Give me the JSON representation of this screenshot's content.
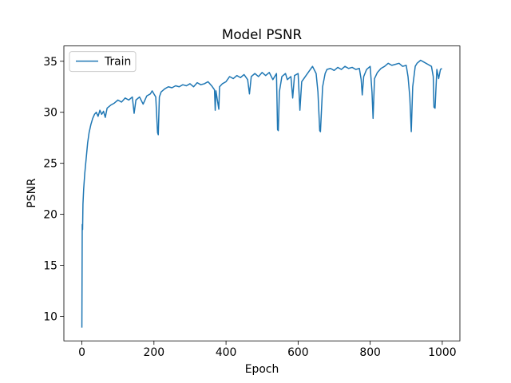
{
  "chart_data": {
    "type": "line",
    "title": "Model PSNR",
    "x_label": "Epoch",
    "y_label": "PSNR",
    "x": [
      0,
      1,
      2,
      3,
      5,
      8,
      12,
      16,
      20,
      25,
      30,
      35,
      40,
      45,
      50,
      55,
      60,
      65,
      70,
      80,
      90,
      100,
      110,
      120,
      130,
      140,
      145,
      150,
      160,
      170,
      180,
      190,
      195,
      200,
      205,
      210,
      212,
      215,
      220,
      230,
      240,
      250,
      260,
      270,
      280,
      290,
      300,
      310,
      320,
      330,
      340,
      350,
      360,
      368,
      370,
      372,
      380,
      382,
      390,
      400,
      410,
      420,
      430,
      440,
      450,
      460,
      465,
      470,
      480,
      490,
      500,
      510,
      520,
      530,
      540,
      543,
      545,
      548,
      555,
      565,
      570,
      580,
      585,
      590,
      600,
      605,
      610,
      620,
      630,
      640,
      650,
      655,
      660,
      662,
      668,
      675,
      680,
      690,
      700,
      710,
      720,
      730,
      740,
      750,
      760,
      770,
      775,
      778,
      782,
      790,
      800,
      805,
      808,
      812,
      820,
      830,
      840,
      850,
      860,
      870,
      880,
      890,
      900,
      905,
      910,
      914,
      918,
      925,
      930,
      940,
      950,
      960,
      970,
      975,
      977,
      980,
      985,
      990,
      995,
      999
    ],
    "series": [
      {
        "name": "Train",
        "color": "#1f77b4",
        "values": [
          8.9,
          19,
          18.5,
          21,
          22.5,
          24,
          25.5,
          27,
          28,
          28.8,
          29.4,
          29.8,
          30,
          29.6,
          30.2,
          29.8,
          30.1,
          29.5,
          30.4,
          30.7,
          30.9,
          31.2,
          31,
          31.4,
          31.2,
          31.5,
          29.9,
          31.2,
          31.5,
          30.8,
          31.6,
          31.8,
          32.1,
          31.8,
          31.5,
          28,
          27.8,
          31.5,
          32,
          32.3,
          32.5,
          32.4,
          32.6,
          32.5,
          32.7,
          32.6,
          32.8,
          32.5,
          32.9,
          32.7,
          32.8,
          33,
          32.6,
          32.2,
          30.2,
          32.1,
          30.3,
          32.5,
          32.8,
          33,
          33.5,
          33.3,
          33.6,
          33.4,
          33.7,
          33.2,
          31.8,
          33.5,
          33.8,
          33.5,
          33.9,
          33.6,
          33.9,
          33.2,
          33.8,
          28.3,
          28.2,
          32,
          33.5,
          33.8,
          33.2,
          33.5,
          31.4,
          33.6,
          33.8,
          30.2,
          33,
          33.5,
          34,
          34.5,
          33.8,
          32,
          28.2,
          28.1,
          32.5,
          33.8,
          34.2,
          34.3,
          34.1,
          34.4,
          34.2,
          34.5,
          34.3,
          34.4,
          34.2,
          34.3,
          33.2,
          31.7,
          33.5,
          34.2,
          34.5,
          32,
          29.4,
          33.3,
          33.9,
          34.3,
          34.5,
          34.8,
          34.6,
          34.7,
          34.8,
          34.5,
          34.6,
          33.5,
          31.5,
          28.1,
          32.5,
          34.5,
          34.8,
          35.1,
          34.9,
          34.7,
          34.5,
          33.5,
          30.5,
          30.4,
          34.2,
          33.3,
          34.2,
          34.3
        ]
      }
    ],
    "xlim": [
      -49.95,
      1048.95
    ],
    "ylim": [
      7.6,
      36.5
    ],
    "xticks": [
      0,
      200,
      400,
      600,
      800,
      1000
    ],
    "yticks": [
      10,
      15,
      20,
      25,
      30,
      35
    ],
    "grid": false,
    "legend": "upper left"
  }
}
